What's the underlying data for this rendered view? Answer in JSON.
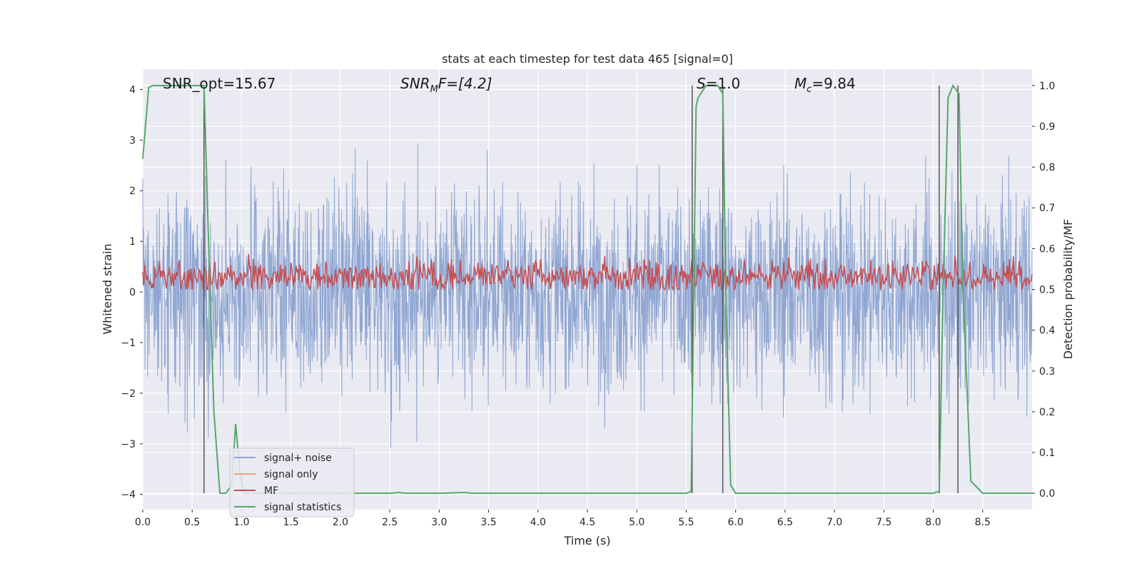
{
  "chart_data": {
    "type": "line",
    "title": "stats at each timestep for test data 465 [signal=0]",
    "xlabel": "Time (s)",
    "ylabel_left": "Whitened strain",
    "ylabel_right": "Detection probability/MF",
    "xlim": [
      0.0,
      9.0
    ],
    "ylim_left": [
      -4.3,
      4.4
    ],
    "ylim_right": [
      -0.04,
      1.04
    ],
    "grid": true,
    "legend_placement": "lower-left",
    "x_ticks": [
      "0.0",
      "0.5",
      "1.0",
      "1.5",
      "2.0",
      "2.5",
      "3.0",
      "3.5",
      "4.0",
      "4.5",
      "5.0",
      "5.5",
      "6.0",
      "6.5",
      "7.0",
      "7.5",
      "8.0",
      "8.5"
    ],
    "y_ticks_left": [
      "4",
      "3",
      "2",
      "1",
      "0",
      "−1",
      "−2",
      "−3",
      "−4"
    ],
    "y_ticks_right": [
      "1.0",
      "0.9",
      "0.8",
      "0.7",
      "0.6",
      "0.5",
      "0.4",
      "0.3",
      "0.2",
      "0.1",
      "0.0"
    ],
    "annotations": {
      "snr_opt": "SNR_opt=15.67",
      "snr_mf_pre": "SNR",
      "snr_mf_sub": "M",
      "snr_mf_post": "F=[4.2]",
      "s_var": "S",
      "s_val": "=1.0",
      "mc_var": "M",
      "mc_sub": "c",
      "mc_val": "=9.84"
    },
    "series": [
      {
        "name": "signal+ noise",
        "color": "#8fa6d2",
        "axis": "left",
        "description_range": [
          -3.8,
          4.0
        ]
      },
      {
        "name": "signal only",
        "color": "#e9a389",
        "axis": "left",
        "values": []
      },
      {
        "name": "MF",
        "color": "#c44e52",
        "axis": "right",
        "range": [
          0.5,
          0.6
        ]
      },
      {
        "name": "signal statistics",
        "color": "#55a868",
        "axis": "right",
        "x": [
          0.0,
          0.06,
          0.1,
          0.2,
          0.3,
          0.4,
          0.5,
          0.6,
          0.62,
          0.68,
          0.72,
          0.78,
          0.84,
          0.9,
          0.94,
          0.98,
          1.02,
          1.1,
          1.5,
          2.0,
          2.5,
          2.6,
          2.65,
          3.0,
          3.25,
          3.35,
          4.0,
          4.5,
          5.0,
          5.5,
          5.55,
          5.6,
          5.62,
          5.7,
          5.75,
          5.82,
          5.87,
          5.9,
          5.95,
          6.0,
          6.5,
          7.0,
          7.5,
          8.0,
          8.06,
          8.1,
          8.15,
          8.2,
          8.26,
          8.3,
          8.38,
          8.5,
          9.0
        ],
        "y": [
          0.82,
          0.995,
          1.0,
          1.0,
          1.0,
          1.0,
          1.0,
          1.0,
          1.0,
          0.5,
          0.2,
          0.0,
          0.0,
          0.02,
          0.17,
          0.06,
          0.0,
          0.0,
          0.0,
          0.0,
          0.0,
          0.002,
          0.0,
          0.0,
          0.002,
          0.0,
          0.0,
          0.0,
          0.0,
          0.0,
          0.005,
          0.95,
          0.97,
          1.0,
          1.0,
          1.0,
          0.98,
          0.5,
          0.02,
          0.0,
          0.0,
          0.0,
          0.0,
          0.0,
          0.005,
          0.5,
          0.97,
          1.0,
          0.98,
          0.5,
          0.03,
          0.0,
          0.0
        ]
      }
    ],
    "vertical_markers_x": [
      0.62,
      5.56,
      5.87,
      8.06,
      8.25
    ],
    "vertical_marker_range_right": [
      0.0,
      1.0
    ]
  }
}
